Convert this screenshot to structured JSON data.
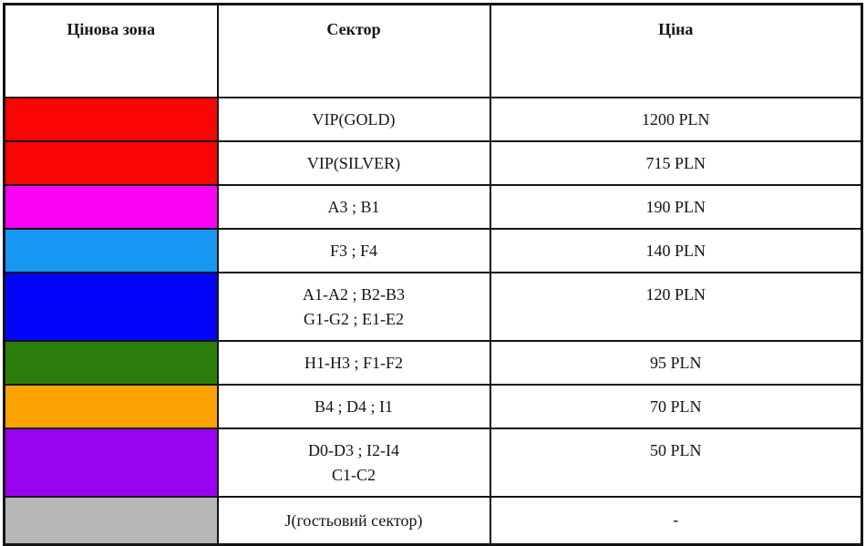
{
  "table": {
    "headers": {
      "zone": "Цінова зона",
      "sector": "Сектор",
      "price": "Ціна"
    },
    "rows": [
      {
        "zone_color": "#fb0404",
        "sector_lines": [
          "VIP(GOLD)"
        ],
        "price": "1200 PLN"
      },
      {
        "zone_color": "#fb0404",
        "sector_lines": [
          "VIP(SILVER)"
        ],
        "price": "715 PLN"
      },
      {
        "zone_color": "#fb04f4",
        "sector_lines": [
          "A3 ; B1"
        ],
        "price": "190 PLN"
      },
      {
        "zone_color": "#1897f2",
        "sector_lines": [
          "F3 ; F4"
        ],
        "price": "140 PLN"
      },
      {
        "zone_color": "#0404fb",
        "sector_lines": [
          "A1-A2 ; B2-B3",
          "G1-G2 ; E1-E2"
        ],
        "price": "120 PLN"
      },
      {
        "zone_color": "#2b7e0c",
        "sector_lines": [
          "H1-H3 ; F1-F2"
        ],
        "price": "95 PLN"
      },
      {
        "zone_color": "#fca303",
        "sector_lines": [
          "B4 ; D4 ; I1"
        ],
        "price": "70 PLN"
      },
      {
        "zone_color": "#9a03f0",
        "sector_lines": [
          "D0-D3 ; I2-I4",
          "C1-C2"
        ],
        "price": "50 PLN"
      },
      {
        "zone_color": "#b7b7b7",
        "sector_lines": [
          "J(гостьовий сектор)"
        ],
        "price": "-"
      }
    ]
  }
}
